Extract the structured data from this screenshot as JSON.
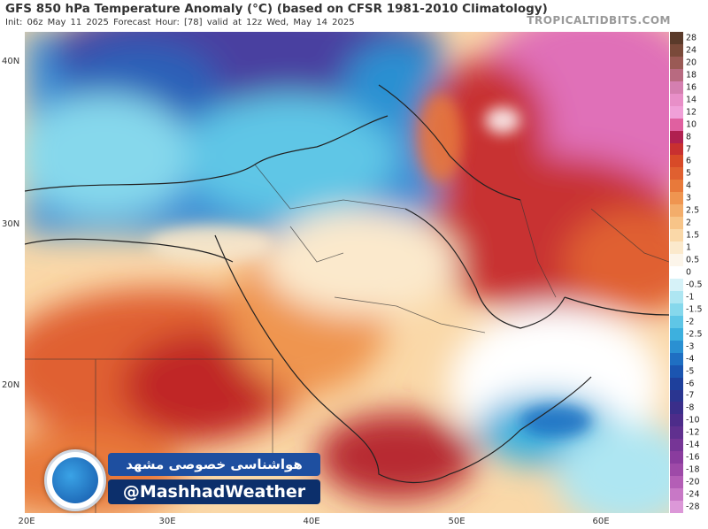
{
  "header": {
    "title": "GFS 850 hPa Temperature Anomaly (°C) (based on CFSR 1981-2010 Climatology)",
    "subtitle": "Init: 06z May 11 2025   Forecast Hour: [78]   valid at 12z Wed, May 14 2025",
    "brand": "TROPICALTIDBITS.COM"
  },
  "axes": {
    "lat_labels": [
      "40N",
      "30N",
      "20N"
    ],
    "lon_labels": [
      "20E",
      "30E",
      "40E",
      "50E",
      "60E"
    ]
  },
  "colorbar": {
    "labels": [
      "28",
      "24",
      "20",
      "18",
      "16",
      "14",
      "12",
      "10",
      "8",
      "7",
      "6",
      "5",
      "4",
      "3",
      "2.5",
      "2",
      "1.5",
      "1",
      "0.5",
      "0",
      "-0.5",
      "-1",
      "-1.5",
      "-2",
      "-2.5",
      "-3",
      "-4",
      "-5",
      "-6",
      "-7",
      "-8",
      "-10",
      "-12",
      "-14",
      "-16",
      "-18",
      "-20",
      "-24",
      "-28"
    ],
    "colors": [
      "#5a3a2a",
      "#7a4a3a",
      "#9a5a55",
      "#b86a80",
      "#d47fb0",
      "#e88fc8",
      "#f0a0d8",
      "#e060a0",
      "#b02050",
      "#c83030",
      "#d84a28",
      "#e06030",
      "#e8793a",
      "#ef9550",
      "#f3ad6b",
      "#f7c488",
      "#fad8a8",
      "#fbe9cc",
      "#fcf5ea",
      "#ffffff",
      "#d6f2f8",
      "#aee6f2",
      "#86d8ec",
      "#5fc6e6",
      "#3db0de",
      "#2a90d2",
      "#1f6fc2",
      "#1b55b0",
      "#1e409c",
      "#2a3590",
      "#3a2e8a",
      "#4d2c8a",
      "#60308f",
      "#763596",
      "#8a3c9e",
      "#9e4aa8",
      "#b45eb6",
      "#c878c6",
      "#dc98d8"
    ]
  },
  "watermark": {
    "persian_text": "هواشناسی خصوصی مشهد",
    "handle": "@MashhadWeather"
  }
}
